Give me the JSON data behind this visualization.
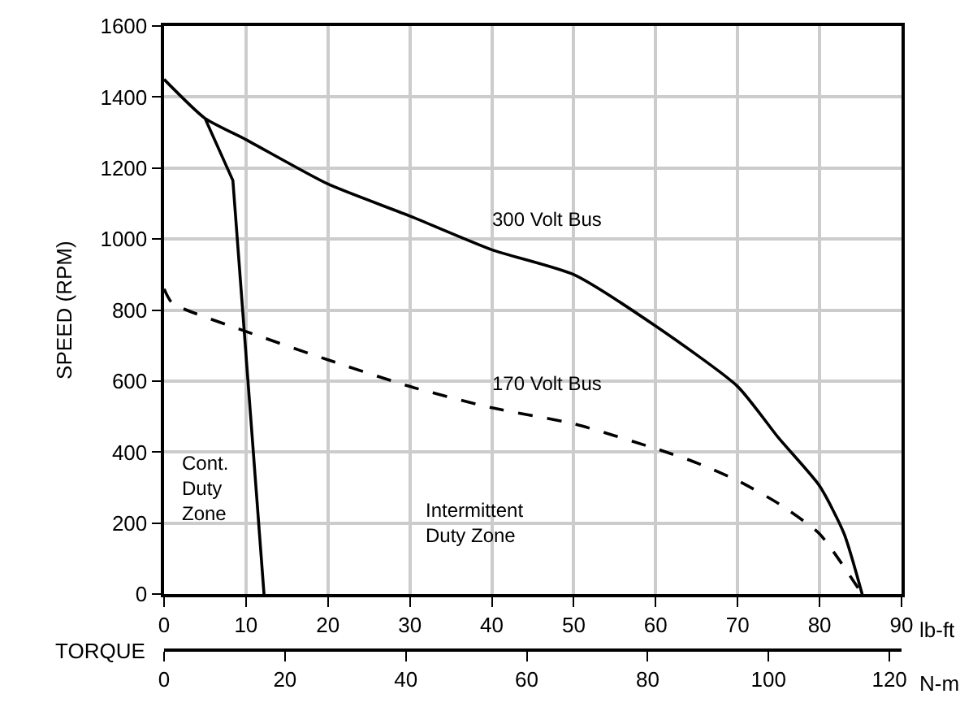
{
  "chart_data": {
    "type": "line",
    "ylabel": "SPEED (RPM)",
    "xlabel": "lb-ft",
    "x2label": "N-m",
    "xlim": [
      0,
      90
    ],
    "xticks": [
      0,
      10,
      20,
      30,
      40,
      50,
      60,
      70,
      80,
      90
    ],
    "x2lim": [
      0,
      122
    ],
    "x2ticks": [
      0,
      20,
      40,
      60,
      80,
      100,
      120
    ],
    "ylim": [
      0,
      1600
    ],
    "yticks": [
      0,
      200,
      400,
      600,
      800,
      1000,
      1200,
      1400,
      1600
    ],
    "grid": true,
    "marker": "none",
    "series": [
      {
        "color": "#000000",
        "line_style": "solid",
        "x": [
          0,
          5,
          10,
          20,
          30,
          40,
          50,
          60,
          70,
          75,
          80,
          83,
          85.2
        ],
        "values": [
          1450,
          1340,
          1280,
          1155,
          1065,
          970,
          900,
          755,
          585,
          440,
          305,
          170,
          0
        ]
      },
      {
        "color": "#000000",
        "line_style": "dashed",
        "x": [
          0,
          1,
          10,
          20,
          30,
          40,
          50,
          60,
          65,
          70,
          75,
          80,
          85.2
        ],
        "values": [
          860,
          820,
          740,
          660,
          585,
          525,
          480,
          410,
          370,
          320,
          255,
          170,
          0
        ]
      },
      {
        "color": "#000000",
        "line_style": "solid",
        "x": [
          5,
          8.4,
          12.2
        ],
        "values": [
          1340,
          1165,
          0
        ]
      }
    ],
    "annotations": [
      "300 Volt Bus",
      "170 Volt Bus",
      "Cont.\nDuty\nZone",
      "Intermittent\nDuty Zone",
      "TORQUE"
    ]
  }
}
